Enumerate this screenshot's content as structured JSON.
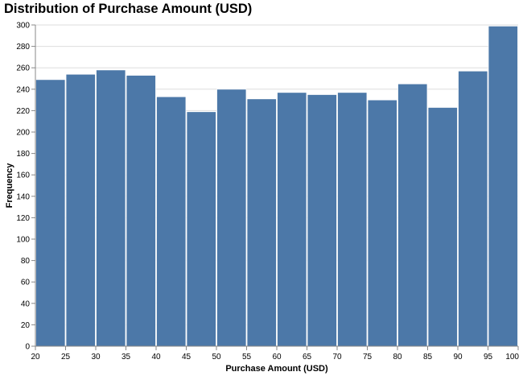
{
  "chart_data": {
    "type": "bar",
    "title": "Distribution of Purchase Amount (USD)",
    "xlabel": "Purchase Amount (USD)",
    "ylabel": "Frequency",
    "bin_edges": [
      20,
      25,
      30,
      35,
      40,
      45,
      50,
      55,
      60,
      65,
      70,
      75,
      80,
      85,
      90,
      95,
      100
    ],
    "values": [
      249,
      254,
      258,
      253,
      233,
      219,
      240,
      231,
      237,
      235,
      237,
      230,
      245,
      223,
      257,
      299
    ],
    "xlim": [
      20,
      100
    ],
    "ylim": [
      0,
      300
    ],
    "x_ticks": [
      20,
      25,
      30,
      35,
      40,
      45,
      50,
      55,
      60,
      65,
      70,
      75,
      80,
      85,
      90,
      95,
      100
    ],
    "y_ticks": [
      0,
      20,
      40,
      60,
      80,
      100,
      120,
      140,
      160,
      180,
      200,
      220,
      240,
      260,
      280,
      300
    ],
    "grid": true,
    "bar_color": "#4c78a8",
    "grid_color": "#dddddd",
    "axis_color": "#888888"
  }
}
